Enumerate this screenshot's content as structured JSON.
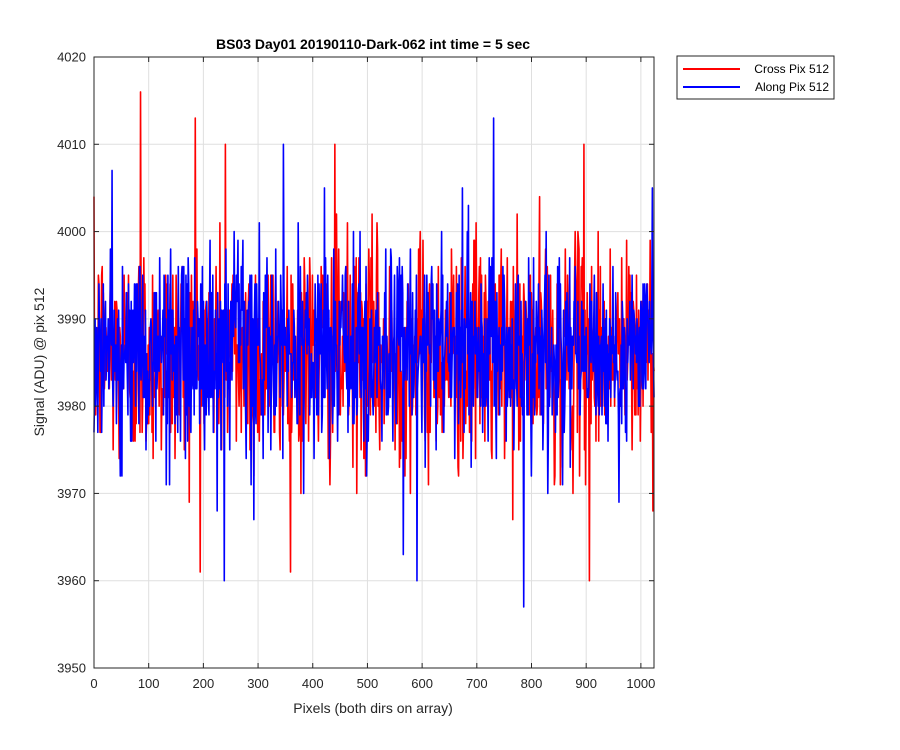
{
  "chart_data": {
    "type": "line",
    "title": "BS03 Day01 20190110-Dark-062 int time = 5 sec",
    "xlabel": "Pixels (both dirs on array)",
    "ylabel": "Signal (ADU) @ pix 512",
    "xlim": [
      0,
      1024
    ],
    "ylim": [
      3950,
      4020
    ],
    "xticks": [
      0,
      100,
      200,
      300,
      400,
      500,
      600,
      700,
      800,
      900,
      1000
    ],
    "yticks": [
      3950,
      3960,
      3970,
      3980,
      3990,
      4000,
      4010,
      4020
    ],
    "grid": true,
    "legend_location": "outside-top-right",
    "series": [
      {
        "name": "Cross Pix 512",
        "color": "#ff0000",
        "mean": 3986,
        "std": 6.5,
        "n_points": 1024,
        "y_min": 3960,
        "y_max": 4016,
        "notable_points": [
          [
            85,
            4016
          ],
          [
            185,
            4013
          ],
          [
            905,
            3960
          ],
          [
            895,
            4010
          ],
          [
            240,
            4010
          ],
          [
            440,
            4010
          ]
        ]
      },
      {
        "name": "Along Pix 512",
        "color": "#0000ff",
        "mean": 3986,
        "std": 6.0,
        "n_points": 1024,
        "y_min": 3957,
        "y_max": 4013,
        "notable_points": [
          [
            730,
            4013
          ],
          [
            785,
            3957
          ],
          [
            238,
            3960
          ],
          [
            590,
            3960
          ],
          [
            565,
            3963
          ],
          [
            1020,
            4005
          ]
        ]
      }
    ]
  }
}
